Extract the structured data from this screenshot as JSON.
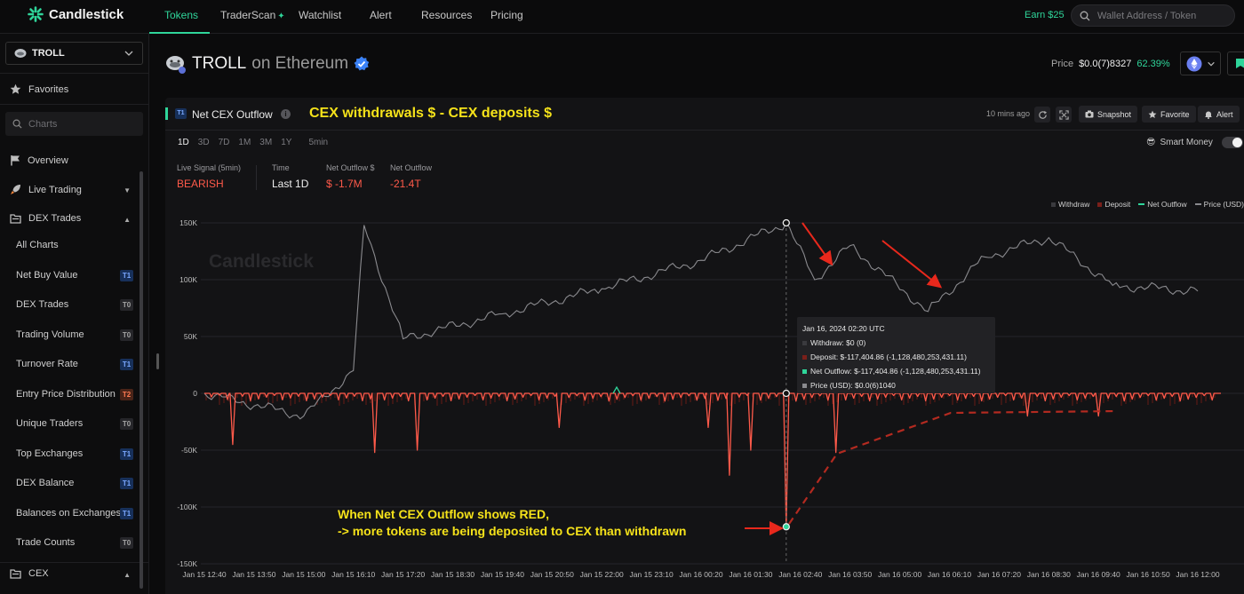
{
  "nav": {
    "brand": "Candlestick",
    "tabs": [
      "Tokens",
      "TraderScan",
      "Watchlist",
      "Alert",
      "Resources",
      "Pricing"
    ],
    "earn": "Earn $25",
    "search_placeholder": "Wallet Address / Token"
  },
  "sidebar": {
    "token": "TROLL",
    "favorites": "Favorites",
    "charts_placeholder": "Charts",
    "overview": "Overview",
    "live_trading": "Live Trading",
    "dex_trades_group": "DEX Trades",
    "items": [
      {
        "label": "All Charts",
        "tier": ""
      },
      {
        "label": "Net Buy Value",
        "tier": "T1"
      },
      {
        "label": "DEX Trades",
        "tier": "T0"
      },
      {
        "label": "Trading Volume",
        "tier": "T0"
      },
      {
        "label": "Turnover Rate",
        "tier": "T1"
      },
      {
        "label": "Entry Price Distribution",
        "tier": "T2"
      },
      {
        "label": "Unique Traders",
        "tier": "T0"
      },
      {
        "label": "Top Exchanges",
        "tier": "T1"
      },
      {
        "label": "DEX Balance",
        "tier": "T1"
      },
      {
        "label": "Balances on Exchanges",
        "tier": "T1"
      },
      {
        "label": "Trade Counts",
        "tier": "T0"
      }
    ],
    "cex_group": "CEX"
  },
  "header": {
    "token": "TROLL",
    "chain_text": "on Ethereum",
    "price_label": "Price",
    "price_value": "$0.0(7)8327",
    "price_change": "62.39%"
  },
  "panel": {
    "tier": "T1",
    "title": "Net CEX Outflow",
    "formula": "CEX withdrawals $ - CEX deposits $",
    "updated": "10 mins ago",
    "snapshot": "Snapshot",
    "favorite": "Favorite",
    "alert": "Alert",
    "ranges": [
      "1D",
      "3D",
      "7D",
      "1M",
      "3M",
      "1Y",
      "5min"
    ],
    "smart_money": "Smart Money",
    "stats": [
      {
        "label": "Live Signal (5min)",
        "value": "BEARISH"
      },
      {
        "label": "Time",
        "value": "Last 1D"
      },
      {
        "label": "Net Outflow $",
        "value": "$ -1.7M"
      },
      {
        "label": "Net Outflow",
        "value": "-21.4T"
      }
    ],
    "watermark": "Candlestick"
  },
  "colors": {
    "accent": "#2fd59a",
    "negative": "#ff5a4a",
    "annotation": "#f5e21a",
    "price_line": "#8a8a8e",
    "arrow": "#e8281c"
  },
  "tooltip": {
    "time": "Jan 16, 2024 02:20 UTC",
    "rows": [
      {
        "text": "Withdraw: $0 (0)",
        "color": "#3a3a3e"
      },
      {
        "text": "Deposit: $-117,404.86 (-1,128,480,253,431.11)",
        "color": "#7a1f1a"
      },
      {
        "text": "Net Outflow: $-117,404.86 (-1,128,480,253,431.11)",
        "color": "#2fd59a"
      },
      {
        "text": "Price (USD): $0.0(6)1040",
        "color": "#8a8a8e"
      }
    ]
  },
  "annotations": {
    "line1": "When Net CEX Outflow shows RED,",
    "line2": "-> more tokens are being deposited to CEX than withdrawn"
  },
  "chart_data": {
    "type": "line",
    "title": "Net CEX Outflow",
    "ylim": [
      -150000,
      150000
    ],
    "y_ticks": [
      "150K",
      "100K",
      "50K",
      "0",
      "-50K",
      "-100K",
      "-150K"
    ],
    "x_ticks": [
      "Jan 15 12:40",
      "Jan 15 13:50",
      "Jan 15 15:00",
      "Jan 15 16:10",
      "Jan 15 17:20",
      "Jan 15 18:30",
      "Jan 15 19:40",
      "Jan 15 20:50",
      "Jan 15 22:00",
      "Jan 15 23:10",
      "Jan 16 00:20",
      "Jan 16 01:30",
      "Jan 16 02:40",
      "Jan 16 03:50",
      "Jan 16 05:00",
      "Jan 16 06:10",
      "Jan 16 07:20",
      "Jan 16 08:30",
      "Jan 16 09:40",
      "Jan 16 10:50",
      "Jan 16 12:00"
    ],
    "legend": [
      "Withdraw",
      "Deposit",
      "Net Outflow",
      "Price (USD)"
    ],
    "legend_position": "top-right",
    "grid": true,
    "net_outflow_spikes": [
      {
        "x": "Jan 15 13:20",
        "y": -45000
      },
      {
        "x": "Jan 15 16:40",
        "y": -52000
      },
      {
        "x": "Jan 15 17:40",
        "y": -50000
      },
      {
        "x": "Jan 15 21:00",
        "y": -30000
      },
      {
        "x": "Jan 16 00:30",
        "y": -30000
      },
      {
        "x": "Jan 16 01:00",
        "y": -72000
      },
      {
        "x": "Jan 16 01:30",
        "y": -50000
      },
      {
        "x": "Jan 16 02:20",
        "y": -117404.86
      },
      {
        "x": "Jan 16 03:30",
        "y": -52000
      },
      {
        "x": "Jan 16 08:00",
        "y": -20000
      },
      {
        "x": "Jan 16 09:40",
        "y": -20000
      }
    ],
    "price_series": [
      {
        "x": "Jan 15 12:40",
        "y": 0
      },
      {
        "x": "Jan 15 15:00",
        "y": -20000
      },
      {
        "x": "Jan 15 16:10",
        "y": 20000
      },
      {
        "x": "Jan 15 16:25",
        "y": 148000
      },
      {
        "x": "Jan 15 17:20",
        "y": 48000
      },
      {
        "x": "Jan 15 19:40",
        "y": 70000
      },
      {
        "x": "Jan 15 22:00",
        "y": 92000
      },
      {
        "x": "Jan 16 00:20",
        "y": 117000
      },
      {
        "x": "Jan 16 02:20",
        "y": 150000
      },
      {
        "x": "Jan 16 03:00",
        "y": 100000
      },
      {
        "x": "Jan 16 03:50",
        "y": 130000
      },
      {
        "x": "Jan 16 05:40",
        "y": 72000
      },
      {
        "x": "Jan 16 07:00",
        "y": 120000
      },
      {
        "x": "Jan 16 08:30",
        "y": 137000
      },
      {
        "x": "Jan 16 10:00",
        "y": 95000
      },
      {
        "x": "Jan 16 12:00",
        "y": 90000
      }
    ]
  }
}
